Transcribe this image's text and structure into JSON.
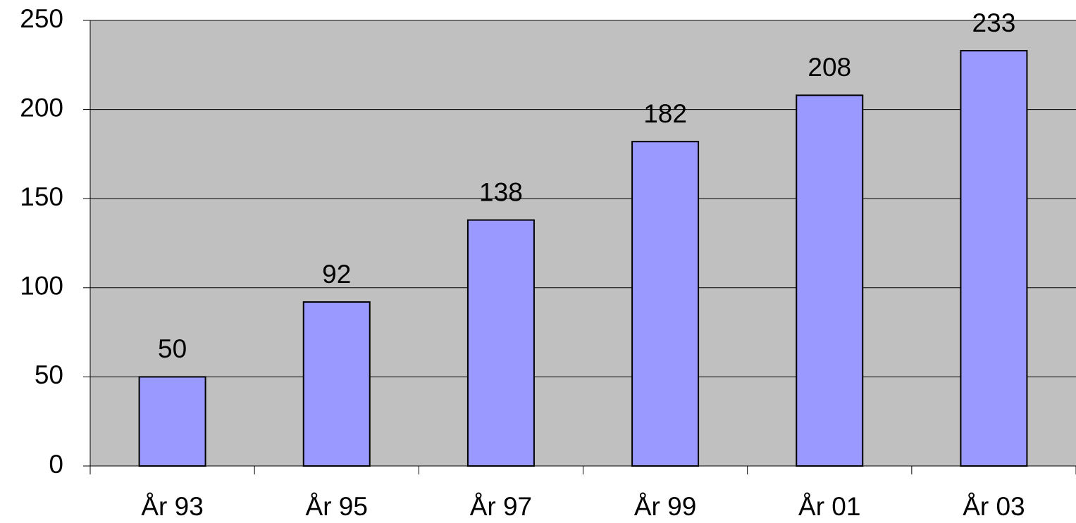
{
  "chart_data": {
    "type": "bar",
    "categories": [
      "År 93",
      "År 95",
      "År 97",
      "År 99",
      "År 01",
      "År 03"
    ],
    "values": [
      50,
      92,
      138,
      182,
      208,
      233
    ],
    "color": "#9999ff",
    "ylim": [
      0,
      250
    ],
    "yticks": [
      0,
      50,
      100,
      150,
      200,
      250
    ],
    "grid": true
  }
}
